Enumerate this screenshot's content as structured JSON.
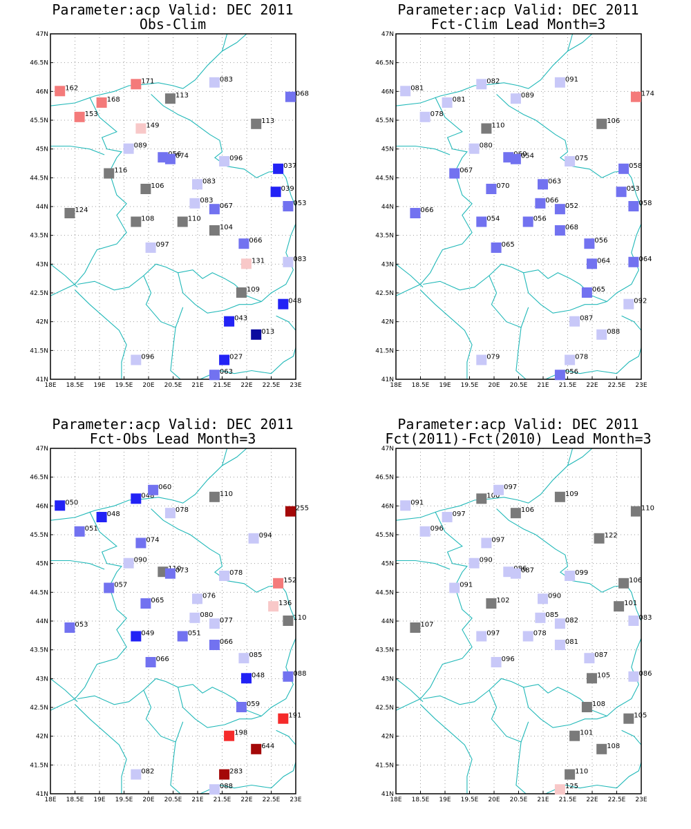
{
  "colors": {
    "border": "#20b8b8",
    "grid": "#9a9a9a",
    "gray": "#7a7a7a",
    "blue_light": "#c8c8f8",
    "blue_mid": "#7272f0",
    "blue_strong": "#2222f5",
    "blue_dark": "#0a0a9e",
    "red_light": "#f8c8c8",
    "red_mid": "#f47a7a",
    "red_strong": "#f52a2a",
    "red_dark": "#a40808"
  },
  "axes": {
    "lon_min": 18,
    "lon_max": 23,
    "lat_min": 41,
    "lat_max": 47,
    "x_ticks": [
      "18E",
      "18.5E",
      "19E",
      "19.5E",
      "20E",
      "20.5E",
      "21E",
      "21.5E",
      "22E",
      "22.5E",
      "23E"
    ],
    "y_ticks": [
      "41N",
      "41.5N",
      "42N",
      "42.5N",
      "43N",
      "43.5N",
      "44N",
      "44.5N",
      "45N",
      "45.5N",
      "46N",
      "46.5N",
      "47N"
    ]
  },
  "panels": [
    {
      "title1": "Parameter:acp Valid: DEC 2011",
      "title2": "Obs-Clim",
      "stations": [
        {
          "lon": 18.2,
          "lat": 46.0,
          "label": "162",
          "cls": "red_mid"
        },
        {
          "lon": 18.6,
          "lat": 45.55,
          "label": "153",
          "cls": "red_mid"
        },
        {
          "lon": 19.05,
          "lat": 45.8,
          "label": "168",
          "cls": "red_mid"
        },
        {
          "lon": 19.75,
          "lat": 46.12,
          "label": "171",
          "cls": "red_mid"
        },
        {
          "lon": 20.45,
          "lat": 45.87,
          "label": "113",
          "cls": "gray"
        },
        {
          "lon": 21.35,
          "lat": 46.15,
          "label": "083",
          "cls": "blue_light"
        },
        {
          "lon": 22.9,
          "lat": 45.9,
          "label": "068",
          "cls": "blue_mid"
        },
        {
          "lon": 19.85,
          "lat": 45.35,
          "label": "149",
          "cls": "red_light"
        },
        {
          "lon": 19.6,
          "lat": 45.0,
          "label": "089",
          "cls": "blue_light"
        },
        {
          "lon": 20.3,
          "lat": 44.85,
          "label": "056",
          "cls": "blue_mid"
        },
        {
          "lon": 20.45,
          "lat": 44.82,
          "label": "074",
          "cls": "blue_mid"
        },
        {
          "lon": 21.55,
          "lat": 44.78,
          "label": "096",
          "cls": "blue_light"
        },
        {
          "lon": 22.2,
          "lat": 45.43,
          "label": "113",
          "cls": "gray"
        },
        {
          "lon": 22.65,
          "lat": 44.65,
          "label": "037",
          "cls": "blue_strong"
        },
        {
          "lon": 22.6,
          "lat": 44.25,
          "label": "039",
          "cls": "blue_strong"
        },
        {
          "lon": 22.85,
          "lat": 44.0,
          "label": "053",
          "cls": "blue_mid"
        },
        {
          "lon": 19.2,
          "lat": 44.57,
          "label": "116",
          "cls": "gray"
        },
        {
          "lon": 19.95,
          "lat": 44.3,
          "label": "106",
          "cls": "gray"
        },
        {
          "lon": 21.0,
          "lat": 44.38,
          "label": "083",
          "cls": "blue_light"
        },
        {
          "lon": 20.95,
          "lat": 44.05,
          "label": "083",
          "cls": "blue_light"
        },
        {
          "lon": 21.35,
          "lat": 43.95,
          "label": "067",
          "cls": "blue_mid"
        },
        {
          "lon": 18.4,
          "lat": 43.88,
          "label": "124",
          "cls": "gray"
        },
        {
          "lon": 19.75,
          "lat": 43.73,
          "label": "108",
          "cls": "gray"
        },
        {
          "lon": 20.7,
          "lat": 43.73,
          "label": "110",
          "cls": "gray"
        },
        {
          "lon": 21.35,
          "lat": 43.58,
          "label": "104",
          "cls": "gray"
        },
        {
          "lon": 21.95,
          "lat": 43.35,
          "label": "066",
          "cls": "blue_mid"
        },
        {
          "lon": 20.05,
          "lat": 43.28,
          "label": "097",
          "cls": "blue_light"
        },
        {
          "lon": 22.0,
          "lat": 43.0,
          "label": "131",
          "cls": "red_light"
        },
        {
          "lon": 22.85,
          "lat": 43.03,
          "label": "083",
          "cls": "blue_light"
        },
        {
          "lon": 21.9,
          "lat": 42.5,
          "label": "109",
          "cls": "gray"
        },
        {
          "lon": 22.75,
          "lat": 42.3,
          "label": "048",
          "cls": "blue_strong"
        },
        {
          "lon": 21.65,
          "lat": 42.0,
          "label": "043",
          "cls": "blue_strong"
        },
        {
          "lon": 22.2,
          "lat": 41.77,
          "label": "013",
          "cls": "blue_dark"
        },
        {
          "lon": 19.75,
          "lat": 41.33,
          "label": "096",
          "cls": "blue_light"
        },
        {
          "lon": 21.55,
          "lat": 41.33,
          "label": "027",
          "cls": "blue_strong"
        },
        {
          "lon": 21.35,
          "lat": 41.07,
          "label": "063",
          "cls": "blue_mid"
        }
      ]
    },
    {
      "title1": "Parameter:acp Valid: DEC 2011",
      "title2": "Fct-Clim Lead Month=3",
      "stations": [
        {
          "lon": 18.2,
          "lat": 46.0,
          "label": "081",
          "cls": "blue_light"
        },
        {
          "lon": 18.6,
          "lat": 45.55,
          "label": "078",
          "cls": "blue_light"
        },
        {
          "lon": 19.05,
          "lat": 45.8,
          "label": "081",
          "cls": "blue_light"
        },
        {
          "lon": 19.75,
          "lat": 46.12,
          "label": "082",
          "cls": "blue_light"
        },
        {
          "lon": 20.45,
          "lat": 45.87,
          "label": "089",
          "cls": "blue_light"
        },
        {
          "lon": 21.35,
          "lat": 46.15,
          "label": "091",
          "cls": "blue_light"
        },
        {
          "lon": 22.9,
          "lat": 45.9,
          "label": "174",
          "cls": "red_mid"
        },
        {
          "lon": 19.85,
          "lat": 45.35,
          "label": "110",
          "cls": "gray"
        },
        {
          "lon": 19.6,
          "lat": 45.0,
          "label": "080",
          "cls": "blue_light"
        },
        {
          "lon": 20.3,
          "lat": 44.85,
          "label": "060",
          "cls": "blue_mid"
        },
        {
          "lon": 20.45,
          "lat": 44.82,
          "label": "054",
          "cls": "blue_mid"
        },
        {
          "lon": 21.55,
          "lat": 44.78,
          "label": "075",
          "cls": "blue_light"
        },
        {
          "lon": 22.2,
          "lat": 45.43,
          "label": "106",
          "cls": "gray"
        },
        {
          "lon": 22.65,
          "lat": 44.65,
          "label": "058",
          "cls": "blue_mid"
        },
        {
          "lon": 22.6,
          "lat": 44.25,
          "label": "053",
          "cls": "blue_mid"
        },
        {
          "lon": 22.85,
          "lat": 44.0,
          "label": "058",
          "cls": "blue_mid"
        },
        {
          "lon": 19.2,
          "lat": 44.57,
          "label": "067",
          "cls": "blue_mid"
        },
        {
          "lon": 19.95,
          "lat": 44.3,
          "label": "070",
          "cls": "blue_mid"
        },
        {
          "lon": 21.0,
          "lat": 44.38,
          "label": "063",
          "cls": "blue_mid"
        },
        {
          "lon": 20.95,
          "lat": 44.05,
          "label": "066",
          "cls": "blue_mid"
        },
        {
          "lon": 21.35,
          "lat": 43.95,
          "label": "052",
          "cls": "blue_mid"
        },
        {
          "lon": 18.4,
          "lat": 43.88,
          "label": "066",
          "cls": "blue_mid"
        },
        {
          "lon": 19.75,
          "lat": 43.73,
          "label": "054",
          "cls": "blue_mid"
        },
        {
          "lon": 20.7,
          "lat": 43.73,
          "label": "056",
          "cls": "blue_mid"
        },
        {
          "lon": 21.35,
          "lat": 43.58,
          "label": "068",
          "cls": "blue_mid"
        },
        {
          "lon": 21.95,
          "lat": 43.35,
          "label": "056",
          "cls": "blue_mid"
        },
        {
          "lon": 20.05,
          "lat": 43.28,
          "label": "065",
          "cls": "blue_mid"
        },
        {
          "lon": 22.0,
          "lat": 43.0,
          "label": "064",
          "cls": "blue_mid"
        },
        {
          "lon": 22.85,
          "lat": 43.03,
          "label": "064",
          "cls": "blue_mid"
        },
        {
          "lon": 21.9,
          "lat": 42.5,
          "label": "065",
          "cls": "blue_mid"
        },
        {
          "lon": 22.75,
          "lat": 42.3,
          "label": "092",
          "cls": "blue_light"
        },
        {
          "lon": 21.65,
          "lat": 42.0,
          "label": "087",
          "cls": "blue_light"
        },
        {
          "lon": 22.2,
          "lat": 41.77,
          "label": "088",
          "cls": "blue_light"
        },
        {
          "lon": 19.75,
          "lat": 41.33,
          "label": "079",
          "cls": "blue_light"
        },
        {
          "lon": 21.55,
          "lat": 41.33,
          "label": "078",
          "cls": "blue_light"
        },
        {
          "lon": 21.35,
          "lat": 41.07,
          "label": "056",
          "cls": "blue_mid"
        }
      ]
    },
    {
      "title1": "Parameter:acp Valid: DEC 2011",
      "title2": "Fct-Obs Lead Month=3",
      "stations": [
        {
          "lon": 18.2,
          "lat": 46.0,
          "label": "050",
          "cls": "blue_strong"
        },
        {
          "lon": 18.6,
          "lat": 45.55,
          "label": "051",
          "cls": "blue_mid"
        },
        {
          "lon": 19.05,
          "lat": 45.8,
          "label": "048",
          "cls": "blue_strong"
        },
        {
          "lon": 19.75,
          "lat": 46.12,
          "label": "048",
          "cls": "blue_strong"
        },
        {
          "lon": 20.1,
          "lat": 46.27,
          "label": "060",
          "cls": "blue_mid"
        },
        {
          "lon": 20.45,
          "lat": 45.87,
          "label": "078",
          "cls": "blue_light"
        },
        {
          "lon": 21.35,
          "lat": 46.15,
          "label": "110",
          "cls": "gray"
        },
        {
          "lon": 22.9,
          "lat": 45.9,
          "label": "255",
          "cls": "red_dark"
        },
        {
          "lon": 19.85,
          "lat": 45.35,
          "label": "074",
          "cls": "blue_mid"
        },
        {
          "lon": 22.15,
          "lat": 45.43,
          "label": "094",
          "cls": "blue_light"
        },
        {
          "lon": 19.6,
          "lat": 45.0,
          "label": "090",
          "cls": "blue_light"
        },
        {
          "lon": 20.3,
          "lat": 44.85,
          "label": "110",
          "cls": "gray"
        },
        {
          "lon": 20.45,
          "lat": 44.82,
          "label": "073",
          "cls": "blue_mid"
        },
        {
          "lon": 21.55,
          "lat": 44.78,
          "label": "078",
          "cls": "blue_light"
        },
        {
          "lon": 22.65,
          "lat": 44.65,
          "label": "152",
          "cls": "red_mid"
        },
        {
          "lon": 22.55,
          "lat": 44.25,
          "label": "136",
          "cls": "red_light"
        },
        {
          "lon": 22.85,
          "lat": 44.0,
          "label": "110",
          "cls": "gray"
        },
        {
          "lon": 19.2,
          "lat": 44.57,
          "label": "057",
          "cls": "blue_mid"
        },
        {
          "lon": 19.95,
          "lat": 44.3,
          "label": "065",
          "cls": "blue_mid"
        },
        {
          "lon": 21.0,
          "lat": 44.38,
          "label": "076",
          "cls": "blue_light"
        },
        {
          "lon": 20.95,
          "lat": 44.05,
          "label": "080",
          "cls": "blue_light"
        },
        {
          "lon": 21.35,
          "lat": 43.95,
          "label": "077",
          "cls": "blue_light"
        },
        {
          "lon": 18.4,
          "lat": 43.88,
          "label": "053",
          "cls": "blue_mid"
        },
        {
          "lon": 19.75,
          "lat": 43.73,
          "label": "049",
          "cls": "blue_strong"
        },
        {
          "lon": 20.7,
          "lat": 43.73,
          "label": "051",
          "cls": "blue_mid"
        },
        {
          "lon": 21.35,
          "lat": 43.58,
          "label": "066",
          "cls": "blue_mid"
        },
        {
          "lon": 21.95,
          "lat": 43.35,
          "label": "085",
          "cls": "blue_light"
        },
        {
          "lon": 20.05,
          "lat": 43.28,
          "label": "066",
          "cls": "blue_mid"
        },
        {
          "lon": 22.0,
          "lat": 43.0,
          "label": "048",
          "cls": "blue_strong"
        },
        {
          "lon": 22.85,
          "lat": 43.03,
          "label": "088",
          "cls": "blue_mid"
        },
        {
          "lon": 21.9,
          "lat": 42.5,
          "label": "059",
          "cls": "blue_mid"
        },
        {
          "lon": 22.75,
          "lat": 42.3,
          "label": "191",
          "cls": "red_strong"
        },
        {
          "lon": 21.65,
          "lat": 42.0,
          "label": "198",
          "cls": "red_strong"
        },
        {
          "lon": 22.2,
          "lat": 41.77,
          "label": "644",
          "cls": "red_dark"
        },
        {
          "lon": 19.75,
          "lat": 41.33,
          "label": "082",
          "cls": "blue_light"
        },
        {
          "lon": 21.55,
          "lat": 41.33,
          "label": "283",
          "cls": "red_dark"
        },
        {
          "lon": 21.35,
          "lat": 41.07,
          "label": "088",
          "cls": "blue_light"
        }
      ]
    },
    {
      "title1": "Parameter:acp Valid: DEC 2011",
      "title2": "Fct(2011)-Fct(2010) Lead Month=3",
      "stations": [
        {
          "lon": 18.2,
          "lat": 46.0,
          "label": "091",
          "cls": "blue_light"
        },
        {
          "lon": 18.6,
          "lat": 45.55,
          "label": "096",
          "cls": "blue_light"
        },
        {
          "lon": 19.05,
          "lat": 45.8,
          "label": "097",
          "cls": "blue_light"
        },
        {
          "lon": 19.75,
          "lat": 46.12,
          "label": "100",
          "cls": "gray"
        },
        {
          "lon": 20.1,
          "lat": 46.27,
          "label": "097",
          "cls": "blue_light"
        },
        {
          "lon": 20.45,
          "lat": 45.87,
          "label": "106",
          "cls": "gray"
        },
        {
          "lon": 21.35,
          "lat": 46.15,
          "label": "109",
          "cls": "gray"
        },
        {
          "lon": 22.9,
          "lat": 45.9,
          "label": "110",
          "cls": "gray"
        },
        {
          "lon": 19.85,
          "lat": 45.35,
          "label": "097",
          "cls": "blue_light"
        },
        {
          "lon": 22.15,
          "lat": 45.43,
          "label": "122",
          "cls": "gray"
        },
        {
          "lon": 19.6,
          "lat": 45.0,
          "label": "090",
          "cls": "blue_light"
        },
        {
          "lon": 20.3,
          "lat": 44.85,
          "label": "086",
          "cls": "blue_light"
        },
        {
          "lon": 20.45,
          "lat": 44.82,
          "label": "087",
          "cls": "blue_light"
        },
        {
          "lon": 21.55,
          "lat": 44.78,
          "label": "099",
          "cls": "blue_light"
        },
        {
          "lon": 22.65,
          "lat": 44.65,
          "label": "106",
          "cls": "gray"
        },
        {
          "lon": 22.55,
          "lat": 44.25,
          "label": "101",
          "cls": "gray"
        },
        {
          "lon": 22.85,
          "lat": 44.0,
          "label": "083",
          "cls": "blue_light"
        },
        {
          "lon": 19.2,
          "lat": 44.57,
          "label": "091",
          "cls": "blue_light"
        },
        {
          "lon": 19.95,
          "lat": 44.3,
          "label": "102",
          "cls": "gray"
        },
        {
          "lon": 21.0,
          "lat": 44.38,
          "label": "090",
          "cls": "blue_light"
        },
        {
          "lon": 20.95,
          "lat": 44.05,
          "label": "085",
          "cls": "blue_light"
        },
        {
          "lon": 21.35,
          "lat": 43.95,
          "label": "082",
          "cls": "blue_light"
        },
        {
          "lon": 18.4,
          "lat": 43.88,
          "label": "107",
          "cls": "gray"
        },
        {
          "lon": 19.75,
          "lat": 43.73,
          "label": "097",
          "cls": "blue_light"
        },
        {
          "lon": 20.7,
          "lat": 43.73,
          "label": "078",
          "cls": "blue_light"
        },
        {
          "lon": 21.35,
          "lat": 43.58,
          "label": "081",
          "cls": "blue_light"
        },
        {
          "lon": 21.95,
          "lat": 43.35,
          "label": "087",
          "cls": "blue_light"
        },
        {
          "lon": 20.05,
          "lat": 43.28,
          "label": "096",
          "cls": "blue_light"
        },
        {
          "lon": 22.0,
          "lat": 43.0,
          "label": "105",
          "cls": "gray"
        },
        {
          "lon": 22.85,
          "lat": 43.03,
          "label": "086",
          "cls": "blue_light"
        },
        {
          "lon": 21.9,
          "lat": 42.5,
          "label": "108",
          "cls": "gray"
        },
        {
          "lon": 22.75,
          "lat": 42.3,
          "label": "105",
          "cls": "gray"
        },
        {
          "lon": 21.65,
          "lat": 42.0,
          "label": "101",
          "cls": "gray"
        },
        {
          "lon": 22.2,
          "lat": 41.77,
          "label": "108",
          "cls": "gray"
        },
        {
          "lon": 21.55,
          "lat": 41.33,
          "label": "110",
          "cls": "gray"
        },
        {
          "lon": 21.35,
          "lat": 41.07,
          "label": "125",
          "cls": "red_light"
        }
      ]
    }
  ]
}
